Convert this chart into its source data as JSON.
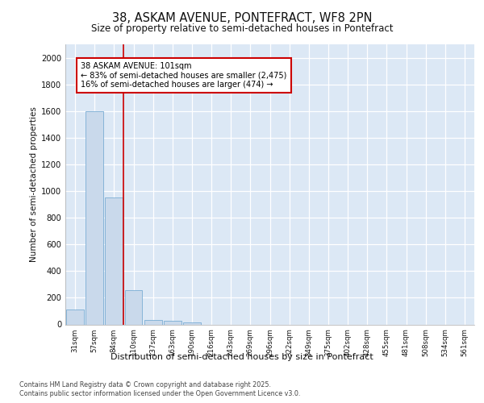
{
  "title_line1": "38, ASKAM AVENUE, PONTEFRACT, WF8 2PN",
  "title_line2": "Size of property relative to semi-detached houses in Pontefract",
  "xlabel": "Distribution of semi-detached houses by size in Pontefract",
  "ylabel": "Number of semi-detached properties",
  "categories": [
    "31sqm",
    "57sqm",
    "84sqm",
    "110sqm",
    "137sqm",
    "163sqm",
    "190sqm",
    "216sqm",
    "243sqm",
    "269sqm",
    "296sqm",
    "322sqm",
    "349sqm",
    "375sqm",
    "402sqm",
    "428sqm",
    "455sqm",
    "481sqm",
    "508sqm",
    "534sqm",
    "561sqm"
  ],
  "values": [
    110,
    1600,
    950,
    255,
    35,
    30,
    15,
    0,
    0,
    0,
    0,
    0,
    0,
    0,
    0,
    0,
    0,
    0,
    0,
    0,
    0
  ],
  "bar_color": "#c9d9eb",
  "bar_edge_color": "#7aadd4",
  "red_line_x": 2.5,
  "annotation_title": "38 ASKAM AVENUE: 101sqm",
  "annotation_line1": "← 83% of semi-detached houses are smaller (2,475)",
  "annotation_line2": "16% of semi-detached houses are larger (474) →",
  "annotation_box_color": "#ffffff",
  "annotation_box_edge": "#cc0000",
  "ylim": [
    0,
    2100
  ],
  "yticks": [
    0,
    200,
    400,
    600,
    800,
    1000,
    1200,
    1400,
    1600,
    1800,
    2000
  ],
  "background_color": "#dce8f5",
  "grid_color": "#ffffff",
  "fig_bg_color": "#ffffff",
  "footer_line1": "Contains HM Land Registry data © Crown copyright and database right 2025.",
  "footer_line2": "Contains public sector information licensed under the Open Government Licence v3.0."
}
